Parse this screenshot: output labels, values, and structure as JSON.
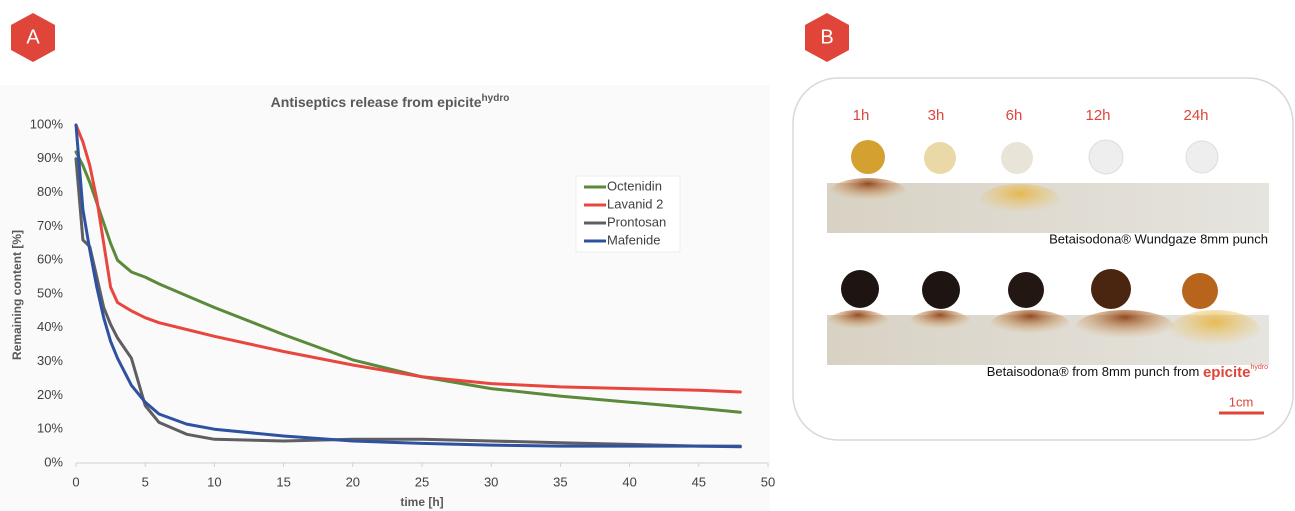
{
  "panel_labels": [
    "A",
    "B"
  ],
  "chart_data": {
    "type": "line",
    "title": "Antiseptics release from epicite",
    "title_sup": "hydro",
    "x_label": "time [h]",
    "y_label": "Remaining content [%]",
    "x": [
      0,
      0.5,
      1,
      1.5,
      2,
      2.5,
      3,
      4,
      5,
      6,
      8,
      10,
      15,
      20,
      25,
      30,
      35,
      40,
      45,
      48
    ],
    "series": [
      {
        "name": "Octenidin",
        "color": "#5a8a3a",
        "values": [
          92,
          88,
          83,
          77,
          71,
          65,
          60,
          56.5,
          55,
          53,
          49.5,
          46,
          38,
          30.5,
          25.5,
          22,
          19.8,
          18,
          16.2,
          15
        ]
      },
      {
        "name": "Lavanid 2",
        "color": "#e8473f",
        "values": [
          100,
          95,
          88,
          78,
          65,
          52,
          47.5,
          45,
          43,
          41.5,
          39.5,
          37.5,
          33,
          29,
          25.5,
          23.5,
          22.5,
          22,
          21.5,
          21
        ]
      },
      {
        "name": "Prontosan",
        "color": "#5f5f63",
        "values": [
          90,
          66,
          64,
          55,
          46,
          41,
          37,
          31,
          17,
          12,
          8.5,
          7,
          6.5,
          7,
          7,
          6.5,
          6,
          5.5,
          5,
          5
        ]
      },
      {
        "name": "Mafenide",
        "color": "#2f52a0",
        "values": [
          100,
          75,
          63,
          52,
          43,
          36,
          31,
          23,
          18,
          14.5,
          11.5,
          10,
          8,
          6.5,
          5.8,
          5.3,
          5,
          5,
          5,
          4.8
        ]
      }
    ],
    "xlim": [
      0,
      50
    ],
    "xticks": [
      0,
      5,
      10,
      15,
      20,
      25,
      30,
      35,
      40,
      45,
      50
    ],
    "ylim": [
      0,
      100
    ],
    "yticks": [
      {
        "value": 0,
        "label": "0%"
      },
      {
        "value": 10,
        "label": "10%"
      },
      {
        "value": 20,
        "label": "20%"
      },
      {
        "value": 30,
        "label": "30%"
      },
      {
        "value": 40,
        "label": "40%"
      },
      {
        "value": 50,
        "label": "50%"
      },
      {
        "value": 60,
        "label": "60%"
      },
      {
        "value": 70,
        "label": "70%"
      },
      {
        "value": 80,
        "label": "80%"
      },
      {
        "value": 90,
        "label": "90%"
      },
      {
        "value": 100,
        "label": "100%"
      }
    ],
    "grid": false,
    "legend": "upper right"
  },
  "photo_panel": {
    "time_labels": [
      "1h",
      "3h",
      "6h",
      "12h",
      "24h"
    ],
    "caption_top": "Betaisodona® Wundgaze 8mm punch",
    "caption_bottom": "Betaisodona® from 8mm punch from ",
    "brand": "epicite",
    "brand_sup": "hydro",
    "scale_label": "1cm"
  }
}
